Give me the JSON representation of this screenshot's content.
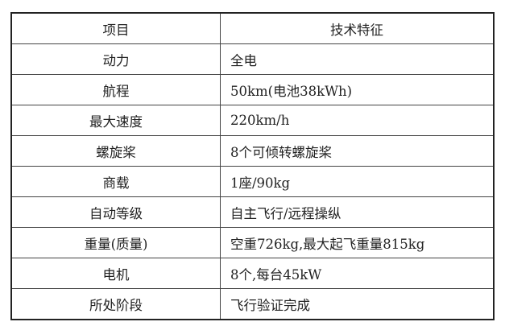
{
  "header": {
    "item": "项目",
    "feature": "技术特征"
  },
  "rows": [
    {
      "item": "动力",
      "feature": "全电"
    },
    {
      "item": "航程",
      "feature": "50km(电池38kWh)"
    },
    {
      "item": "最大速度",
      "feature": "220km/h"
    },
    {
      "item": "螺旋桨",
      "feature": "8个可倾转螺旋桨"
    },
    {
      "item": "商载",
      "feature": "1座/90kg"
    },
    {
      "item": "自动等级",
      "feature": "自主飞行/远程操纵"
    },
    {
      "item": "重量(质量)",
      "feature": "空重726kg,最大起飞重量815kg"
    },
    {
      "item": "电机",
      "feature": "8个,每台45kW"
    },
    {
      "item": "所处阶段",
      "feature": "飞行验证完成"
    }
  ]
}
